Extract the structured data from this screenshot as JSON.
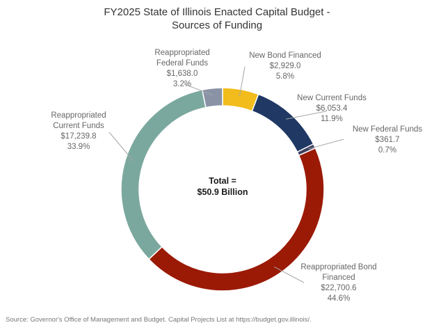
{
  "chart_data": {
    "type": "pie",
    "title_line1": "FY2025 State of Illinois Enacted Capital Budget -",
    "title_line2": "Sources of Funding",
    "center_line1": "Total =",
    "center_line2": "$50.9 Billion",
    "legend": "none",
    "slices": [
      {
        "label_lines": [
          "New Bond Financed"
        ],
        "value": 2929.0,
        "value_text": "$2,929.0",
        "percent_text": "5.8%",
        "color": "#F2BC1C"
      },
      {
        "label_lines": [
          "New Current Funds"
        ],
        "value": 6053.4,
        "value_text": "$6,053.4",
        "percent_text": "11.9%",
        "color": "#1F3864"
      },
      {
        "label_lines": [
          "New Federal Funds"
        ],
        "value": 361.7,
        "value_text": "$361.7",
        "percent_text": "0.7%",
        "color": "#3F3F5F"
      },
      {
        "label_lines": [
          "Reappropriated Bond",
          "Financed"
        ],
        "value": 22700.6,
        "value_text": "$22,700.6",
        "percent_text": "44.6%",
        "color": "#9B1A06"
      },
      {
        "label_lines": [
          "Reappropriated",
          "Current Funds"
        ],
        "value": 17239.8,
        "value_text": "$17,239.8",
        "percent_text": "33.9%",
        "color": "#7BA89E"
      },
      {
        "label_lines": [
          "Reappropriated",
          "Federal Funds"
        ],
        "value": 1638.0,
        "value_text": "$1,638.0",
        "percent_text": "3.2%",
        "color": "#8A93A6"
      }
    ]
  },
  "source_note": "Source: Governor's Office of Management and Budget. Capital Projects List at https://budget.gov.illinois/."
}
